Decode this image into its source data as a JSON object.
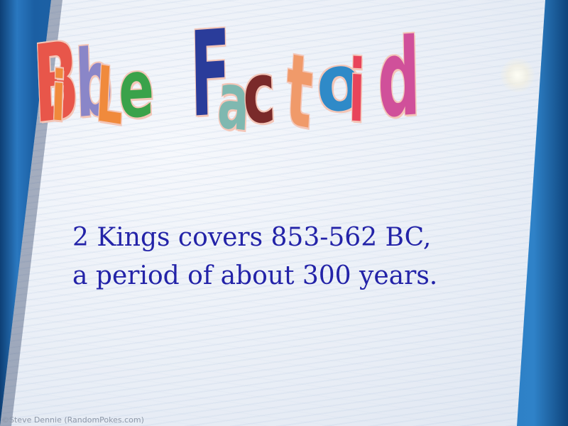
{
  "title": {
    "word1": [
      "B",
      "i",
      "b",
      "L",
      "e"
    ],
    "word2": [
      "F",
      "a",
      "c",
      "t",
      "o",
      "i",
      "d"
    ],
    "colors": {
      "B": "#e8564a",
      "i1": "#f08a3c",
      "b": "#8a86c8",
      "L": "#f08a3c",
      "e": "#3aa24a",
      "F": "#2a3c9a",
      "a": "#7fb8b0",
      "c": "#7a2a2a",
      "t": "#f09a6a",
      "o": "#2f8ac8",
      "i2": "#e8445a",
      "d": "#d0509a"
    }
  },
  "body": {
    "line1": "2 Kings covers 853-562 BC,",
    "line2": "a period of about 300 years."
  },
  "credit": "©Steve Dennie (RandomPokes.com)"
}
